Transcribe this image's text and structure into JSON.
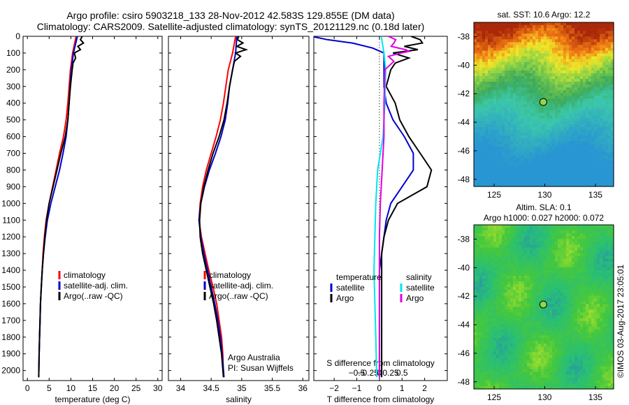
{
  "header": {
    "line1": "Argo profile: csiro 5903218_133 28-Nov-2012 42.583S 129.855E (DM data)",
    "line2": "Climatology: CARS2009. Satellite-adjusted climatology: synTS_20121129.nc (0.18d later)"
  },
  "colors": {
    "climatology": "#ff0000",
    "satellite_adj": "#0000cc",
    "argo": "#000000",
    "salinity_satellite": "#00e5ee",
    "salinity_argo": "#e000e0"
  },
  "chart_data": [
    {
      "type": "line",
      "panel": "temperature",
      "xlabel": "temperature (deg C)",
      "ylabel": "",
      "xlim": [
        -1,
        31
      ],
      "ylim": [
        2060,
        0
      ],
      "xticks": [
        0,
        5,
        10,
        15,
        20,
        25,
        30
      ],
      "yticks": [
        0,
        100,
        200,
        300,
        400,
        500,
        600,
        700,
        800,
        900,
        1000,
        1100,
        1200,
        1300,
        1400,
        1500,
        1600,
        1700,
        1800,
        1900,
        2000
      ],
      "legend": [
        "climatology",
        "satellite-adj. clim.",
        "Argo(..raw -QC)"
      ],
      "series": [
        {
          "name": "climatology",
          "color": "#ff0000",
          "depth": [
            0,
            100,
            200,
            300,
            400,
            500,
            600,
            700,
            800,
            900,
            1000,
            1100,
            1200,
            1300,
            1400,
            1500,
            1600,
            1700,
            1800,
            1900,
            2040
          ],
          "values": [
            11.2,
            10.4,
            9.9,
            9.6,
            9.3,
            8.9,
            8.3,
            7.4,
            6.6,
            5.8,
            5.0,
            4.3,
            3.9,
            3.6,
            3.4,
            3.2,
            3.0,
            2.9,
            2.8,
            2.7,
            2.6
          ]
        },
        {
          "name": "satellite-adj. clim.",
          "color": "#0000cc",
          "depth": [
            0,
            100,
            200,
            300,
            400,
            500,
            600,
            700,
            800,
            900,
            1000,
            1100,
            1200,
            1300,
            1400,
            1500,
            1600,
            1700,
            1800,
            1900,
            2040
          ],
          "values": [
            11.5,
            10.6,
            10.1,
            9.8,
            9.6,
            9.3,
            8.9,
            8.2,
            7.4,
            6.4,
            5.4,
            4.6,
            4.1,
            3.7,
            3.4,
            3.2,
            3.0,
            2.9,
            2.8,
            2.7,
            2.6
          ]
        },
        {
          "name": "Argo(..raw -QC)",
          "color": "#000000",
          "depth": [
            0,
            20,
            40,
            60,
            80,
            100,
            130,
            160,
            200,
            300,
            400,
            500,
            600,
            700,
            800,
            900,
            1000,
            1100,
            1200,
            1300,
            1400,
            1500,
            1600,
            1700,
            1800,
            1900,
            2040
          ],
          "values": [
            12.6,
            12.2,
            12.9,
            11.6,
            12.2,
            10.8,
            11.1,
            10.5,
            10.3,
            9.9,
            9.6,
            9.3,
            8.7,
            7.7,
            6.8,
            5.9,
            5.0,
            4.4,
            4.0,
            3.7,
            3.4,
            3.2,
            3.0,
            2.9,
            2.8,
            2.7,
            2.6
          ]
        }
      ]
    },
    {
      "type": "line",
      "panel": "salinity",
      "xlabel": "salinity",
      "ylabel": "",
      "xlim": [
        33.8,
        36.1
      ],
      "ylim": [
        2060,
        0
      ],
      "xticks": [
        34,
        34.5,
        35,
        35.5,
        36
      ],
      "xtick_labels": [
        "34",
        "34.5",
        "35",
        "35.5",
        "36"
      ],
      "legend": [
        "climatology",
        "satellite-adj. clim.",
        "Argo(..raw -QC)"
      ],
      "annotation": [
        "Argo Australia",
        "PI: Susan Wijffels"
      ],
      "series": [
        {
          "name": "climatology",
          "color": "#ff0000",
          "depth": [
            0,
            100,
            200,
            300,
            400,
            500,
            600,
            700,
            800,
            900,
            1000,
            1100,
            1200,
            1300,
            1400,
            1500,
            1600,
            1700,
            1800,
            1900,
            2040
          ],
          "values": [
            34.9,
            34.85,
            34.78,
            34.74,
            34.7,
            34.65,
            34.58,
            34.5,
            34.42,
            34.36,
            34.32,
            34.3,
            34.34,
            34.4,
            34.46,
            34.53,
            34.59,
            34.63,
            34.67,
            34.69,
            34.7
          ]
        },
        {
          "name": "satellite-adj. clim.",
          "color": "#0000cc",
          "depth": [
            0,
            100,
            200,
            300,
            400,
            500,
            600,
            700,
            800,
            900,
            1000,
            1100,
            1200,
            1300,
            1400,
            1500,
            1600,
            1700,
            1800,
            1900,
            2040
          ],
          "values": [
            34.92,
            34.9,
            34.85,
            34.8,
            34.77,
            34.73,
            34.66,
            34.57,
            34.47,
            34.39,
            34.33,
            34.3,
            34.33,
            34.38,
            34.44,
            34.5,
            34.56,
            34.61,
            34.65,
            34.68,
            34.71
          ]
        },
        {
          "name": "Argo(..raw -QC)",
          "color": "#000000",
          "depth": [
            0,
            20,
            40,
            60,
            80,
            100,
            120,
            150,
            200,
            300,
            400,
            500,
            600,
            700,
            800,
            900,
            1000,
            1100,
            1200,
            1300,
            1400,
            1500,
            1600,
            1700,
            1800,
            1900,
            2040
          ],
          "values": [
            34.95,
            34.93,
            35.02,
            34.92,
            35.07,
            34.9,
            34.98,
            34.88,
            34.85,
            34.8,
            34.76,
            34.71,
            34.63,
            34.53,
            34.45,
            34.38,
            34.33,
            34.31,
            34.32,
            34.36,
            34.42,
            34.48,
            34.54,
            34.59,
            34.63,
            34.67,
            34.7
          ]
        }
      ]
    },
    {
      "type": "line",
      "panel": "difference",
      "xlabel": "T difference from climatology",
      "xlabel_top": "S difference from climatology",
      "xlim": [
        -2.9,
        3.0
      ],
      "ylim": [
        2060,
        0
      ],
      "xticks": [
        -2,
        -1,
        0,
        1,
        2
      ],
      "xtick_labels": [
        "−2",
        "−1",
        "0",
        "1",
        "2"
      ],
      "sticks": [
        -1,
        -0.5,
        0,
        0.5,
        1
      ],
      "stick_labels": [
        "−0.5",
        "−0.25",
        "0",
        "0.25",
        "0.5"
      ],
      "legend_groups": [
        {
          "title": "temperature",
          "entries": [
            "satellite",
            "Argo"
          ]
        },
        {
          "title": "salinity",
          "entries": [
            "satellite",
            "Argo"
          ]
        }
      ],
      "series": [
        {
          "name": "satellite",
          "group": "temperature",
          "color": "#0000cc",
          "depth": [
            0,
            20,
            40,
            70,
            100,
            200,
            300,
            400,
            500,
            600,
            700,
            800,
            900,
            1000,
            1100,
            1200,
            1400,
            1600,
            1800,
            2040
          ],
          "values": [
            -3.0,
            -2.3,
            -1.2,
            -0.3,
            0.2,
            0.2,
            0.2,
            0.3,
            0.6,
            1.1,
            1.5,
            1.5,
            1.0,
            0.5,
            0.3,
            0.2,
            0.0,
            0.0,
            0.0,
            0.0
          ]
        },
        {
          "name": "Argo",
          "group": "temperature",
          "color": "#000000",
          "depth": [
            0,
            20,
            40,
            60,
            80,
            100,
            130,
            160,
            200,
            300,
            400,
            500,
            600,
            700,
            800,
            900,
            1000,
            1100,
            1200,
            1300,
            1400,
            1600,
            1800,
            2040
          ],
          "values": [
            1.4,
            1.8,
            1.9,
            1.1,
            1.7,
            0.6,
            1.3,
            0.7,
            0.5,
            0.3,
            0.7,
            0.9,
            1.3,
            1.8,
            2.3,
            2.1,
            0.8,
            0.4,
            0.2,
            0.1,
            0.1,
            0.1,
            0.1,
            0.1
          ]
        },
        {
          "name": "satellite",
          "group": "salinity",
          "color": "#00e5ee",
          "depth": [
            0,
            100,
            200,
            400,
            600,
            800,
            1000,
            1200,
            1400,
            1600,
            1800,
            2040
          ],
          "values": [
            0.02,
            0.05,
            0.07,
            0.06,
            0.04,
            -0.02,
            -0.04,
            -0.05,
            -0.06,
            -0.05,
            -0.04,
            -0.03
          ]
        },
        {
          "name": "Argo",
          "group": "salinity",
          "color": "#e000e0",
          "depth": [
            0,
            20,
            40,
            60,
            80,
            90,
            100,
            120,
            150,
            200,
            400,
            600,
            800,
            1000,
            1200,
            1400,
            1600,
            1800,
            2040
          ],
          "values": [
            0.1,
            0.18,
            0.16,
            0.13,
            0.29,
            0.33,
            0.24,
            0.1,
            0.16,
            0.06,
            0.05,
            0.05,
            0.03,
            0.01,
            0.0,
            0.0,
            0.0,
            0.0,
            0.0
          ]
        }
      ]
    },
    {
      "type": "heatmap",
      "panel": "sst_map",
      "title": "sat. SST: 10.6  Argo: 12.2",
      "xlim": [
        123,
        136.8
      ],
      "ylim": [
        -48.5,
        -37
      ],
      "xticks": [
        125,
        130,
        135
      ],
      "yticks": [
        -38,
        -40,
        -42,
        -44,
        -46,
        -48
      ],
      "ytick_labels": [
        "-38",
        "-40",
        "-42",
        "-44",
        "-46",
        "-48"
      ],
      "marker": {
        "lon": 129.855,
        "lat": -42.583
      }
    },
    {
      "type": "heatmap",
      "panel": "sla_map",
      "title_lines": [
        "Altim. SLA: 0.1",
        "Argo h1000: 0.027 h2000: 0.072"
      ],
      "xlim": [
        123,
        136.8
      ],
      "ylim": [
        -48.5,
        -37
      ],
      "xticks": [
        125,
        130,
        135
      ],
      "yticks": [
        -38,
        -40,
        -42,
        -44,
        -46,
        -48
      ],
      "ytick_labels": [
        "-38",
        "-40",
        "-42",
        "-44",
        "-46",
        "-48"
      ],
      "marker": {
        "lon": 129.855,
        "lat": -42.583
      }
    }
  ],
  "footer": {
    "stamp": "©IMOS 03-Aug-2017 23:05:01"
  }
}
